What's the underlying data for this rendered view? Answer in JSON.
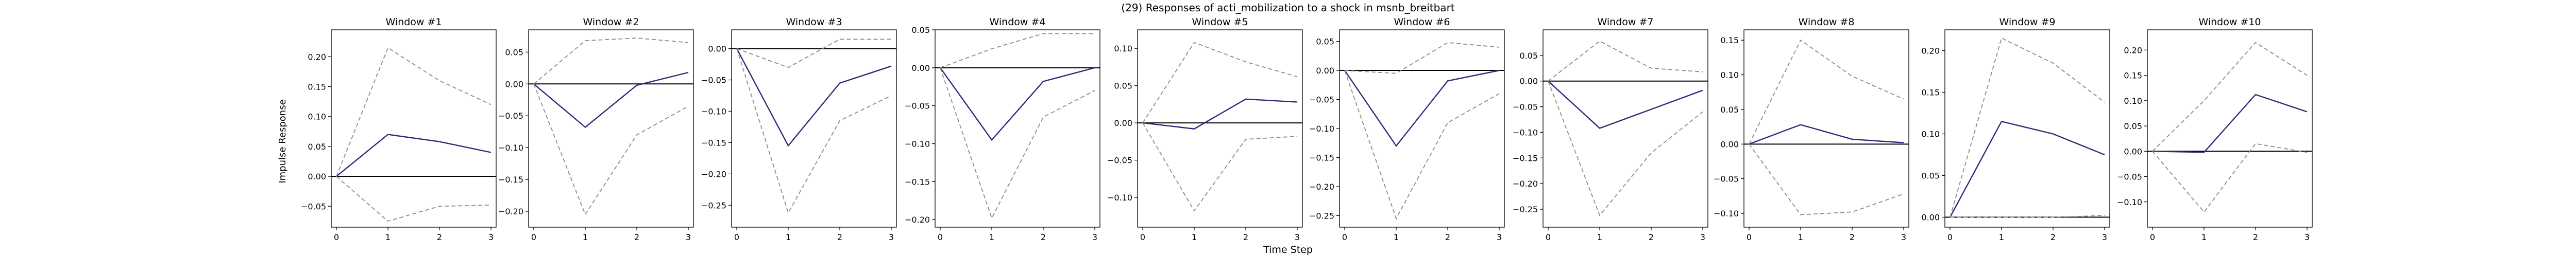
{
  "figure": {
    "suptitle": "(29) Responses of acti_mobilization to a shock in msnb_breitbart",
    "xlabel": "Time Step",
    "ylabel": "Impulse Response",
    "colors": {
      "response": "#2b2b7a",
      "band": "#8c8c8c",
      "zero": "#000000"
    }
  },
  "chart_data": [
    {
      "type": "line",
      "title": "Window #1",
      "x": [
        0,
        1,
        2,
        3
      ],
      "ylim": [
        -0.085,
        0.245
      ],
      "yticks": [
        -0.05,
        0.0,
        0.05,
        0.1,
        0.15,
        0.2
      ],
      "yticklabels": [
        "−0.05",
        "0.00",
        "0.05",
        "0.10",
        "0.15",
        "0.20"
      ],
      "xticks": [
        0,
        1,
        2,
        3
      ],
      "xticklabels": [
        "0",
        "1",
        "2",
        "3"
      ],
      "series": [
        {
          "role": "response",
          "values": [
            0.0,
            0.07,
            0.058,
            0.04
          ]
        },
        {
          "role": "upper",
          "values": [
            0.0,
            0.215,
            0.16,
            0.12
          ]
        },
        {
          "role": "lower",
          "values": [
            0.0,
            -0.075,
            -0.05,
            -0.048
          ]
        }
      ]
    },
    {
      "type": "line",
      "title": "Window #2",
      "x": [
        0,
        1,
        2,
        3
      ],
      "ylim": [
        -0.225,
        0.085
      ],
      "yticks": [
        -0.2,
        -0.15,
        -0.1,
        -0.05,
        0.0,
        0.05
      ],
      "yticklabels": [
        "−0.20",
        "−0.15",
        "−0.10",
        "−0.05",
        "0.00",
        "0.05"
      ],
      "xticks": [
        0,
        1,
        2,
        3
      ],
      "xticklabels": [
        "0",
        "1",
        "2",
        "3"
      ],
      "series": [
        {
          "role": "response",
          "values": [
            0.0,
            -0.068,
            -0.002,
            0.018
          ]
        },
        {
          "role": "upper",
          "values": [
            0.0,
            0.068,
            0.072,
            0.065
          ]
        },
        {
          "role": "lower",
          "values": [
            0.0,
            -0.205,
            -0.08,
            -0.035
          ]
        }
      ]
    },
    {
      "type": "line",
      "title": "Window #3",
      "x": [
        0,
        1,
        2,
        3
      ],
      "ylim": [
        -0.285,
        0.03
      ],
      "yticks": [
        -0.25,
        -0.2,
        -0.15,
        -0.1,
        -0.05,
        0.0
      ],
      "yticklabels": [
        "−0.25",
        "−0.20",
        "−0.15",
        "−0.10",
        "−0.05",
        "0.00"
      ],
      "xticks": [
        0,
        1,
        2,
        3
      ],
      "xticklabels": [
        "0",
        "1",
        "2",
        "3"
      ],
      "series": [
        {
          "role": "response",
          "values": [
            0.0,
            -0.155,
            -0.055,
            -0.028
          ]
        },
        {
          "role": "upper",
          "values": [
            0.0,
            -0.03,
            0.015,
            0.015
          ]
        },
        {
          "role": "lower",
          "values": [
            0.0,
            -0.262,
            -0.115,
            -0.075
          ]
        }
      ]
    },
    {
      "type": "line",
      "title": "Window #4",
      "x": [
        0,
        1,
        2,
        3
      ],
      "ylim": [
        -0.21,
        0.05
      ],
      "yticks": [
        -0.2,
        -0.15,
        -0.1,
        -0.05,
        0.0,
        0.05
      ],
      "yticklabels": [
        "−0.20",
        "−0.15",
        "−0.10",
        "−0.05",
        "0.00",
        "0.05"
      ],
      "xticks": [
        0,
        1,
        2,
        3
      ],
      "xticklabels": [
        "0",
        "1",
        "2",
        "3"
      ],
      "series": [
        {
          "role": "response",
          "values": [
            0.0,
            -0.095,
            -0.018,
            0.0
          ]
        },
        {
          "role": "upper",
          "values": [
            0.0,
            0.025,
            0.045,
            0.045
          ]
        },
        {
          "role": "lower",
          "values": [
            0.0,
            -0.198,
            -0.065,
            -0.03
          ]
        }
      ]
    },
    {
      "type": "line",
      "title": "Window #5",
      "x": [
        0,
        1,
        2,
        3
      ],
      "ylim": [
        -0.14,
        0.125
      ],
      "yticks": [
        -0.1,
        -0.05,
        0.0,
        0.05,
        0.1
      ],
      "yticklabels": [
        "−0.10",
        "−0.05",
        "0.00",
        "0.05",
        "0.10"
      ],
      "xticks": [
        0,
        1,
        2,
        3
      ],
      "xticklabels": [
        "0",
        "1",
        "2",
        "3"
      ],
      "series": [
        {
          "role": "response",
          "values": [
            0.0,
            -0.008,
            0.032,
            0.028
          ]
        },
        {
          "role": "upper",
          "values": [
            0.0,
            0.108,
            0.082,
            0.062
          ]
        },
        {
          "role": "lower",
          "values": [
            0.0,
            -0.118,
            -0.022,
            -0.018
          ]
        }
      ]
    },
    {
      "type": "line",
      "title": "Window #6",
      "x": [
        0,
        1,
        2,
        3
      ],
      "ylim": [
        -0.27,
        0.07
      ],
      "yticks": [
        -0.25,
        -0.2,
        -0.15,
        -0.1,
        -0.05,
        0.0,
        0.05
      ],
      "yticklabels": [
        "−0.25",
        "−0.20",
        "−0.15",
        "−0.10",
        "−0.05",
        "0.00",
        "0.05"
      ],
      "xticks": [
        0,
        1,
        2,
        3
      ],
      "xticklabels": [
        "0",
        "1",
        "2",
        "3"
      ],
      "series": [
        {
          "role": "response",
          "values": [
            0.0,
            -0.13,
            -0.018,
            0.0
          ]
        },
        {
          "role": "upper",
          "values": [
            0.0,
            -0.005,
            0.048,
            0.04
          ]
        },
        {
          "role": "lower",
          "values": [
            0.0,
            -0.255,
            -0.09,
            -0.04
          ]
        }
      ]
    },
    {
      "type": "line",
      "title": "Window #7",
      "x": [
        0,
        1,
        2,
        3
      ],
      "ylim": [
        -0.285,
        0.1
      ],
      "yticks": [
        -0.25,
        -0.2,
        -0.15,
        -0.1,
        -0.05,
        0.0,
        0.05
      ],
      "yticklabels": [
        "−0.25",
        "−0.20",
        "−0.15",
        "−0.10",
        "−0.05",
        "0.00",
        "0.05"
      ],
      "xticks": [
        0,
        1,
        2,
        3
      ],
      "xticklabels": [
        "0",
        "1",
        "2",
        "3"
      ],
      "series": [
        {
          "role": "response",
          "values": [
            0.0,
            -0.092,
            -0.055,
            -0.018
          ]
        },
        {
          "role": "upper",
          "values": [
            0.0,
            0.078,
            0.025,
            0.018
          ]
        },
        {
          "role": "lower",
          "values": [
            0.0,
            -0.262,
            -0.14,
            -0.06
          ]
        }
      ]
    },
    {
      "type": "line",
      "title": "Window #8",
      "x": [
        0,
        1,
        2,
        3
      ],
      "ylim": [
        -0.12,
        0.165
      ],
      "yticks": [
        -0.1,
        -0.05,
        0.0,
        0.05,
        0.1,
        0.15
      ],
      "yticklabels": [
        "−0.10",
        "−0.05",
        "0.00",
        "0.05",
        "0.10",
        "0.15"
      ],
      "xticks": [
        0,
        1,
        2,
        3
      ],
      "xticklabels": [
        "0",
        "1",
        "2",
        "3"
      ],
      "series": [
        {
          "role": "response",
          "values": [
            0.0,
            0.028,
            0.007,
            0.002
          ]
        },
        {
          "role": "upper",
          "values": [
            0.0,
            0.15,
            0.098,
            0.065
          ]
        },
        {
          "role": "lower",
          "values": [
            0.0,
            -0.102,
            -0.098,
            -0.072
          ]
        }
      ]
    },
    {
      "type": "line",
      "title": "Window #9",
      "x": [
        0,
        1,
        2,
        3
      ],
      "ylim": [
        -0.012,
        0.225
      ],
      "yticks": [
        0.0,
        0.05,
        0.1,
        0.15,
        0.2
      ],
      "yticklabels": [
        "0.00",
        "0.05",
        "0.10",
        "0.15",
        "0.20"
      ],
      "xticks": [
        0,
        1,
        2,
        3
      ],
      "xticklabels": [
        "0",
        "1",
        "2",
        "3"
      ],
      "series": [
        {
          "role": "response",
          "values": [
            0.0,
            0.115,
            0.1,
            0.075
          ]
        },
        {
          "role": "upper",
          "values": [
            0.0,
            0.215,
            0.185,
            0.138
          ]
        },
        {
          "role": "lower",
          "values": [
            0.0,
            0.0,
            0.0,
            0.002
          ]
        }
      ]
    },
    {
      "type": "line",
      "title": "Window #10",
      "x": [
        0,
        1,
        2,
        3
      ],
      "ylim": [
        -0.15,
        0.24
      ],
      "yticks": [
        -0.1,
        -0.05,
        0.0,
        0.05,
        0.1,
        0.15,
        0.2
      ],
      "yticklabels": [
        "−0.10",
        "−0.05",
        "0.00",
        "0.05",
        "0.10",
        "0.15",
        "0.20"
      ],
      "xticks": [
        0,
        1,
        2,
        3
      ],
      "xticklabels": [
        "0",
        "1",
        "2",
        "3"
      ],
      "series": [
        {
          "role": "response",
          "values": [
            0.0,
            -0.002,
            0.112,
            0.078
          ]
        },
        {
          "role": "upper",
          "values": [
            0.0,
            0.1,
            0.215,
            0.15
          ]
        },
        {
          "role": "lower",
          "values": [
            0.0,
            -0.12,
            0.015,
            -0.002
          ]
        }
      ]
    }
  ]
}
